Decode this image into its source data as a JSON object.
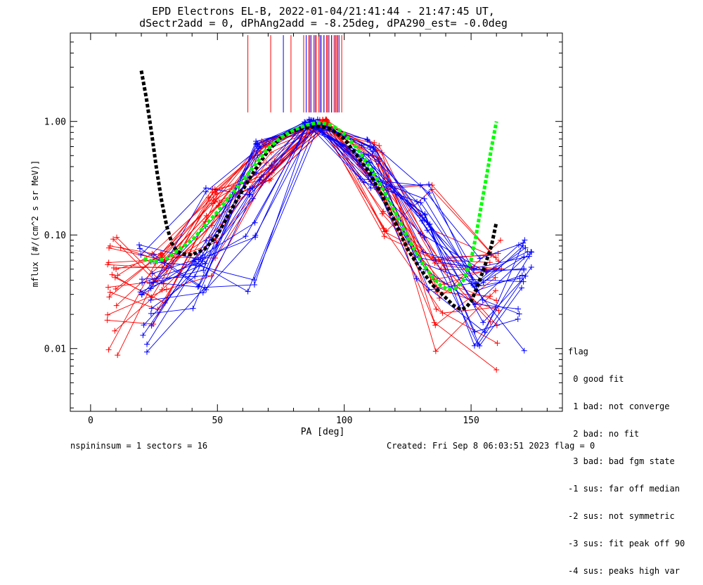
{
  "title": {
    "line1": "EPD Electrons EL-B, 2022-01-04/21:41:44 - 21:47:45 UT,",
    "line2": "dSectr2add = 0, dPhAng2add = -8.25deg, dPA290_est=  -0.0deg"
  },
  "legend": {
    "header": "flag",
    "items": [
      " 0 good fit",
      " 1 bad: not converge",
      " 2 bad: no fit",
      " 3 bad: bad fgm state",
      "-1 sus: far off median",
      "-2 sus: not symmetric",
      "-3 sus: fit peak off 90",
      "-4 sus: peaks high var"
    ]
  },
  "footer": {
    "left": "nspininsum =  1  sectors = 16",
    "right": "Created: Fri Sep  8 06:03:51 2023   flag = 0"
  },
  "colors": {
    "red": "#ff0000",
    "blue": "#0000ff",
    "green": "#00ff00",
    "black": "#000000"
  },
  "chart_data": {
    "type": "line",
    "xlabel": "PA [deg]",
    "ylabel": "mflux [#/(cm^2 s sr MeV)]",
    "xlim": [
      -8,
      186
    ],
    "ylim": [
      0.0028,
      6.0
    ],
    "yscale": "log",
    "xticks": [
      0,
      50,
      100,
      150
    ],
    "xtick_labels": [
      "0",
      "50",
      "100",
      "150"
    ],
    "yticks": [
      0.01,
      0.1,
      1.0
    ],
    "ytick_labels": [
      "0.01",
      "0.10",
      "1.00"
    ],
    "vlines_red": [
      62,
      71,
      79,
      84,
      86,
      87,
      88,
      89,
      90,
      91,
      92,
      93,
      94,
      95,
      96,
      97,
      98,
      99
    ],
    "vlines_blue": [
      76,
      85,
      86.5,
      88.5,
      90.5,
      92,
      93.5,
      95,
      96.5,
      97.5
    ],
    "vline_ymin": 1.2,
    "series": [
      {
        "color": "black",
        "style": "dashed-thick",
        "x": [
          20,
          22,
          24,
          26,
          28,
          30,
          32,
          34,
          36,
          40,
          45,
          50,
          55,
          60,
          65,
          70,
          75,
          80,
          85,
          88,
          90,
          92,
          95,
          100,
          105,
          110,
          115,
          120,
          125,
          130,
          135,
          140,
          143,
          146,
          148,
          150,
          152,
          155,
          158,
          160
        ],
        "y": [
          2.8,
          1.6,
          0.8,
          0.38,
          0.2,
          0.12,
          0.085,
          0.072,
          0.068,
          0.067,
          0.075,
          0.1,
          0.16,
          0.25,
          0.38,
          0.55,
          0.72,
          0.83,
          0.88,
          0.9,
          0.9,
          0.89,
          0.85,
          0.7,
          0.5,
          0.35,
          0.22,
          0.13,
          0.075,
          0.05,
          0.036,
          0.028,
          0.024,
          0.022,
          0.023,
          0.026,
          0.033,
          0.05,
          0.08,
          0.13
        ]
      },
      {
        "color": "green",
        "style": "dashed-thick",
        "x": [
          21,
          25,
          30,
          35,
          40,
          45,
          50,
          55,
          60,
          65,
          70,
          75,
          80,
          85,
          88,
          90,
          92,
          95,
          100,
          105,
          110,
          115,
          120,
          125,
          130,
          135,
          138,
          141,
          144,
          147,
          150,
          152,
          154,
          156,
          158,
          160
        ],
        "y": [
          0.062,
          0.058,
          0.062,
          0.075,
          0.09,
          0.12,
          0.16,
          0.22,
          0.3,
          0.42,
          0.58,
          0.72,
          0.84,
          0.93,
          0.96,
          0.97,
          0.96,
          0.93,
          0.78,
          0.58,
          0.4,
          0.26,
          0.16,
          0.095,
          0.06,
          0.042,
          0.036,
          0.033,
          0.034,
          0.04,
          0.06,
          0.1,
          0.18,
          0.32,
          0.58,
          1.0
        ]
      }
    ]
  }
}
